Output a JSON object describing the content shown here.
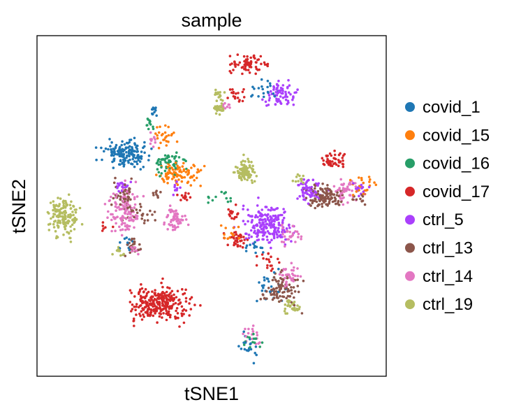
{
  "chart_data": {
    "type": "scatter",
    "title": "sample",
    "xlabel": "tSNE1",
    "ylabel": "tSNE2",
    "xticks": "none",
    "yticks": "none",
    "grid": false,
    "legend_position": "right",
    "xlim": [
      -60,
      60
    ],
    "ylim": [
      -60,
      60
    ],
    "series": [
      {
        "name": "covid_1",
        "color": "#1f77b4",
        "clusters": [
          {
            "x": -29.5,
            "y": 18.5,
            "rx": 7.0,
            "ry": 4.0,
            "n": 150
          },
          {
            "x": -19.0,
            "y": 33.0,
            "rx": 1.5,
            "ry": 1.5,
            "n": 12
          },
          {
            "x": 20.0,
            "y": -29.0,
            "rx": 5.0,
            "ry": 5.0,
            "n": 25
          },
          {
            "x": 13.5,
            "y": -50.0,
            "rx": 3.0,
            "ry": 4.0,
            "n": 20
          },
          {
            "x": 18.0,
            "y": 41.0,
            "rx": 5.0,
            "ry": 3.0,
            "n": 20
          },
          {
            "x": 14.0,
            "y": -14.0,
            "rx": 4.0,
            "ry": 3.0,
            "n": 14
          },
          {
            "x": -29.0,
            "y": -13.0,
            "rx": 3.0,
            "ry": 3.0,
            "n": 10
          }
        ]
      },
      {
        "name": "covid_15",
        "color": "#ff7f0e",
        "clusters": [
          {
            "x": -12.0,
            "y": 11.0,
            "rx": 7.0,
            "ry": 3.5,
            "n": 90
          },
          {
            "x": -16.0,
            "y": 24.0,
            "rx": 3.0,
            "ry": 5.0,
            "n": 25
          },
          {
            "x": 52.0,
            "y": 7.0,
            "rx": 5.0,
            "ry": 3.0,
            "n": 25
          },
          {
            "x": 6.0,
            "y": -9.0,
            "rx": 4.0,
            "ry": 3.0,
            "n": 14
          }
        ]
      },
      {
        "name": "covid_16",
        "color": "#279e68",
        "clusters": [
          {
            "x": -15.0,
            "y": 15.0,
            "rx": 5.0,
            "ry": 3.5,
            "n": 55
          },
          {
            "x": -21.0,
            "y": 29.0,
            "rx": 1.5,
            "ry": 2.0,
            "n": 12
          },
          {
            "x": 14.5,
            "y": -47.0,
            "rx": 3.0,
            "ry": 3.0,
            "n": 12
          },
          {
            "x": 3.0,
            "y": 3.0,
            "rx": 3.0,
            "ry": 2.5,
            "n": 12
          }
        ]
      },
      {
        "name": "covid_17",
        "color": "#d62728",
        "clusters": [
          {
            "x": -17.5,
            "y": -34.5,
            "rx": 9.5,
            "ry": 5.5,
            "n": 270
          },
          {
            "x": 13.0,
            "y": 50.0,
            "rx": 5.5,
            "ry": 3.0,
            "n": 70
          },
          {
            "x": 42.0,
            "y": 16.5,
            "rx": 4.0,
            "ry": 2.5,
            "n": 45
          },
          {
            "x": 9.0,
            "y": -12.0,
            "rx": 3.5,
            "ry": 2.5,
            "n": 35
          },
          {
            "x": 7.0,
            "y": -3.0,
            "rx": 2.5,
            "ry": 2.5,
            "n": 18
          },
          {
            "x": 8.0,
            "y": 39.0,
            "rx": 3.0,
            "ry": 3.0,
            "n": 18
          },
          {
            "x": 19.0,
            "y": -20.0,
            "rx": 3.5,
            "ry": 3.0,
            "n": 18
          },
          {
            "x": -9.0,
            "y": 3.5,
            "rx": 2.0,
            "ry": 1.5,
            "n": 12
          },
          {
            "x": -37.0,
            "y": -7.0,
            "rx": 2.0,
            "ry": 2.0,
            "n": 6
          }
        ]
      },
      {
        "name": "ctrl_5",
        "color": "#aa40fc",
        "clusters": [
          {
            "x": 19.0,
            "y": -6.5,
            "rx": 7.5,
            "ry": 6.0,
            "n": 200
          },
          {
            "x": 33.5,
            "y": 5.5,
            "rx": 4.5,
            "ry": 4.0,
            "n": 60
          },
          {
            "x": 23.5,
            "y": 39.5,
            "rx": 5.0,
            "ry": 4.0,
            "n": 70
          },
          {
            "x": -30.0,
            "y": 7.0,
            "rx": 2.5,
            "ry": 2.0,
            "n": 20
          },
          {
            "x": 50.5,
            "y": 6.5,
            "rx": 2.5,
            "ry": 3.0,
            "n": 15
          },
          {
            "x": -12.0,
            "y": 6.0,
            "rx": 2.0,
            "ry": 2.0,
            "n": 10
          }
        ]
      },
      {
        "name": "ctrl_13",
        "color": "#8c564b",
        "clusters": [
          {
            "x": 38.5,
            "y": 3.5,
            "rx": 6.0,
            "ry": 3.5,
            "n": 120
          },
          {
            "x": 24.0,
            "y": -29.5,
            "rx": 5.5,
            "ry": 5.0,
            "n": 90
          },
          {
            "x": -30.0,
            "y": 2.5,
            "rx": 3.5,
            "ry": 6.0,
            "n": 50
          },
          {
            "x": -23.5,
            "y": -3.0,
            "rx": 2.5,
            "ry": 3.0,
            "n": 18
          },
          {
            "x": -27.0,
            "y": -14.0,
            "rx": 2.5,
            "ry": 3.0,
            "n": 25
          },
          {
            "x": 50.5,
            "y": 2.5,
            "rx": 2.0,
            "ry": 2.0,
            "n": 10
          },
          {
            "x": -19.0,
            "y": 4.5,
            "rx": 1.5,
            "ry": 1.5,
            "n": 8
          }
        ]
      },
      {
        "name": "ctrl_14",
        "color": "#e377c2",
        "clusters": [
          {
            "x": -30.0,
            "y": -1.5,
            "rx": 4.5,
            "ry": 7.0,
            "n": 120
          },
          {
            "x": -12.5,
            "y": -4.5,
            "rx": 3.5,
            "ry": 4.5,
            "n": 60
          },
          {
            "x": 46.0,
            "y": 5.5,
            "rx": 3.5,
            "ry": 4.5,
            "n": 45
          },
          {
            "x": 26.5,
            "y": -24.5,
            "rx": 3.0,
            "ry": 3.5,
            "n": 35
          },
          {
            "x": 27.0,
            "y": -10.0,
            "rx": 3.0,
            "ry": 3.0,
            "n": 30
          },
          {
            "x": 14.0,
            "y": -45.0,
            "rx": 3.0,
            "ry": 4.0,
            "n": 18
          },
          {
            "x": -20.0,
            "y": 23.0,
            "rx": 1.5,
            "ry": 3.0,
            "n": 10
          },
          {
            "x": -26.0,
            "y": -15.0,
            "rx": 2.0,
            "ry": 2.0,
            "n": 10
          },
          {
            "x": 5.0,
            "y": 36.0,
            "rx": 2.0,
            "ry": 2.0,
            "n": 8
          }
        ]
      },
      {
        "name": "ctrl_19",
        "color": "#b5bd61",
        "clusters": [
          {
            "x": -50.5,
            "y": -3.5,
            "rx": 4.5,
            "ry": 6.0,
            "n": 150
          },
          {
            "x": 11.5,
            "y": 12.0,
            "rx": 3.0,
            "ry": 4.0,
            "n": 90
          },
          {
            "x": 27.5,
            "y": -35.5,
            "rx": 3.0,
            "ry": 2.0,
            "n": 35
          },
          {
            "x": 2.5,
            "y": 34.0,
            "rx": 1.5,
            "ry": 1.5,
            "n": 25
          },
          {
            "x": 2.5,
            "y": 39.0,
            "rx": 1.5,
            "ry": 2.0,
            "n": 15
          },
          {
            "x": -32.0,
            "y": -16.0,
            "rx": 1.5,
            "ry": 1.5,
            "n": 12
          },
          {
            "x": 30.0,
            "y": 10.0,
            "rx": 2.0,
            "ry": 2.0,
            "n": 12
          }
        ]
      }
    ]
  }
}
